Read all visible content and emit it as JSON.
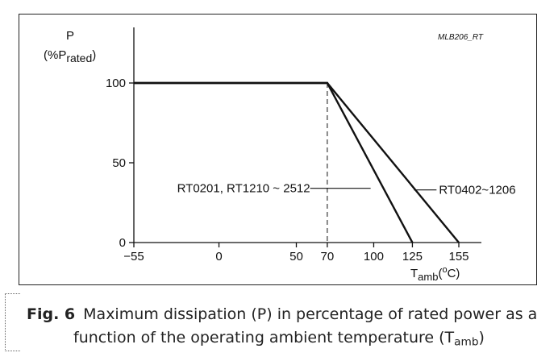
{
  "chart_data": {
    "type": "line",
    "code": "MLB206_RT",
    "ylabel": {
      "line1": "P",
      "prefix": "(%P",
      "sub": "rated",
      "suffix": ")"
    },
    "xlabel": {
      "prefix": "T",
      "sub": "amb",
      "mid": "(",
      "sup": "o",
      "suffix": "C)"
    },
    "x_ticks": [
      -55,
      0,
      50,
      70,
      100,
      125,
      155
    ],
    "x_tick_labels": [
      "−55",
      "0",
      "50",
      "70",
      "100",
      "125",
      "155"
    ],
    "y_ticks": [
      0,
      50,
      100
    ],
    "y_tick_labels": [
      "0",
      "50",
      "100"
    ],
    "xlim": [
      -55,
      155
    ],
    "ylim": [
      0,
      100
    ],
    "grid": false,
    "reference_line": {
      "x": 70,
      "style": "dashed"
    },
    "series": [
      {
        "name": "RT0402~1206",
        "x": [
          -55,
          70,
          155
        ],
        "y": [
          100,
          100,
          0
        ],
        "annotation_anchor": {
          "x": 126,
          "y": 33
        }
      },
      {
        "name": "RT0201, RT1210 ~ 2512",
        "x": [
          -55,
          70,
          125
        ],
        "y": [
          100,
          100,
          0
        ],
        "annotation_anchor": {
          "x": 98,
          "y": 34
        }
      }
    ]
  },
  "caption": {
    "label": "Fig. 6",
    "line1": "Maximum dissipation (P) in percentage of rated power as a",
    "line2_prefix": "function of the operating ambient temperature (T",
    "line2_sub": "amb",
    "line2_suffix": ")"
  }
}
